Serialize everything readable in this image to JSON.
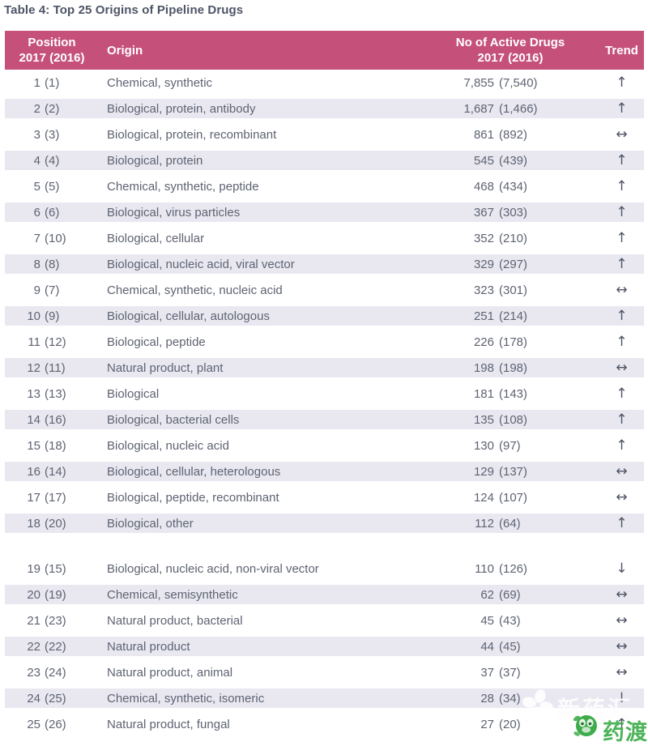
{
  "page": {
    "title": "Table 4: Top 25 Origins of Pipeline Drugs"
  },
  "table": {
    "headers": {
      "position_line1": "Position",
      "position_line2": "2017 (2016)",
      "origin": "Origin",
      "drugs_line1": "No of Active Drugs",
      "drugs_line2": "2017 (2016)",
      "trend": "Trend"
    },
    "gap_before_index": 18,
    "rows": [
      {
        "pos_2017": "1",
        "pos_2016": "(1)",
        "origin": "Chemical, synthetic",
        "drugs_2017": "7,855",
        "drugs_2016": "(7,540)",
        "trend": "up"
      },
      {
        "pos_2017": "2",
        "pos_2016": "(2)",
        "origin": "Biological, protein, antibody",
        "drugs_2017": "1,687",
        "drugs_2016": "(1,466)",
        "trend": "up"
      },
      {
        "pos_2017": "3",
        "pos_2016": "(3)",
        "origin": "Biological, protein, recombinant",
        "drugs_2017": "861",
        "drugs_2016": "(892)",
        "trend": "same"
      },
      {
        "pos_2017": "4",
        "pos_2016": "(4)",
        "origin": "Biological, protein",
        "drugs_2017": "545",
        "drugs_2016": "(439)",
        "trend": "up"
      },
      {
        "pos_2017": "5",
        "pos_2016": "(5)",
        "origin": "Chemical, synthetic, peptide",
        "drugs_2017": "468",
        "drugs_2016": "(434)",
        "trend": "up"
      },
      {
        "pos_2017": "6",
        "pos_2016": "(6)",
        "origin": "Biological, virus particles",
        "drugs_2017": "367",
        "drugs_2016": "(303)",
        "trend": "up"
      },
      {
        "pos_2017": "7",
        "pos_2016": "(10)",
        "origin": "Biological, cellular",
        "drugs_2017": "352",
        "drugs_2016": "(210)",
        "trend": "up"
      },
      {
        "pos_2017": "8",
        "pos_2016": "(8)",
        "origin": "Biological, nucleic acid, viral vector",
        "drugs_2017": "329",
        "drugs_2016": "(297)",
        "trend": "up"
      },
      {
        "pos_2017": "9",
        "pos_2016": "(7)",
        "origin": "Chemical, synthetic, nucleic acid",
        "drugs_2017": "323",
        "drugs_2016": "(301)",
        "trend": "same"
      },
      {
        "pos_2017": "10",
        "pos_2016": "(9)",
        "origin": "Biological, cellular, autologous",
        "drugs_2017": "251",
        "drugs_2016": "(214)",
        "trend": "up"
      },
      {
        "pos_2017": "11",
        "pos_2016": "(12)",
        "origin": "Biological, peptide",
        "drugs_2017": "226",
        "drugs_2016": "(178)",
        "trend": "up"
      },
      {
        "pos_2017": "12",
        "pos_2016": "(11)",
        "origin": "Natural product, plant",
        "drugs_2017": "198",
        "drugs_2016": "(198)",
        "trend": "same"
      },
      {
        "pos_2017": "13",
        "pos_2016": "(13)",
        "origin": "Biological",
        "drugs_2017": "181",
        "drugs_2016": "(143)",
        "trend": "up"
      },
      {
        "pos_2017": "14",
        "pos_2016": "(16)",
        "origin": "Biological, bacterial cells",
        "drugs_2017": "135",
        "drugs_2016": "(108)",
        "trend": "up"
      },
      {
        "pos_2017": "15",
        "pos_2016": "(18)",
        "origin": "Biological, nucleic acid",
        "drugs_2017": "130",
        "drugs_2016": "(97)",
        "trend": "up"
      },
      {
        "pos_2017": "16",
        "pos_2016": "(14)",
        "origin": "Biological, cellular, heterologous",
        "drugs_2017": "129",
        "drugs_2016": "(137)",
        "trend": "same"
      },
      {
        "pos_2017": "17",
        "pos_2016": "(17)",
        "origin": "Biological, peptide, recombinant",
        "drugs_2017": "124",
        "drugs_2016": "(107)",
        "trend": "same"
      },
      {
        "pos_2017": "18",
        "pos_2016": "(20)",
        "origin": "Biological, other",
        "drugs_2017": "112",
        "drugs_2016": "(64)",
        "trend": "up"
      },
      {
        "pos_2017": "19",
        "pos_2016": "(15)",
        "origin": "Biological, nucleic acid, non-viral vector",
        "drugs_2017": "110",
        "drugs_2016": "(126)",
        "trend": "down"
      },
      {
        "pos_2017": "20",
        "pos_2016": "(19)",
        "origin": "Chemical, semisynthetic",
        "drugs_2017": "62",
        "drugs_2016": "(69)",
        "trend": "same"
      },
      {
        "pos_2017": "21",
        "pos_2016": "(23)",
        "origin": "Natural product, bacterial",
        "drugs_2017": "45",
        "drugs_2016": "(43)",
        "trend": "same"
      },
      {
        "pos_2017": "22",
        "pos_2016": "(22)",
        "origin": "Natural product",
        "drugs_2017": "44",
        "drugs_2016": "(45)",
        "trend": "same"
      },
      {
        "pos_2017": "23",
        "pos_2016": "(24)",
        "origin": "Natural product, animal",
        "drugs_2017": "37",
        "drugs_2016": "(37)",
        "trend": "same"
      },
      {
        "pos_2017": "24",
        "pos_2016": "(25)",
        "origin": "Chemical, synthetic, isomeric",
        "drugs_2017": "28",
        "drugs_2016": "(34)",
        "trend": "down"
      },
      {
        "pos_2017": "25",
        "pos_2016": "(26)",
        "origin": "Natural product, fungal",
        "drugs_2017": "27",
        "drugs_2016": "(20)",
        "trend": "up"
      }
    ]
  },
  "trend_symbols": {
    "up": "↑",
    "same": "↔",
    "down": "↓"
  },
  "colors": {
    "header_bg": "#c5517a",
    "stripe": "#e9e8f1",
    "title_color": "#4d5466",
    "text_color": "#5e6372",
    "arrow_color": "#4e5565",
    "watermark_green": "#3eac4b",
    "watermark_white": "#ffffff"
  },
  "watermark": {
    "brand1": "新药汇",
    "brand2": "药渡"
  }
}
